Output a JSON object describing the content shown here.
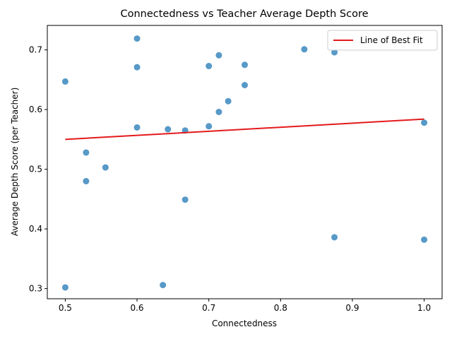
{
  "chart_data": {
    "type": "scatter",
    "title": "Connectedness vs Teacher Average Depth Score",
    "xlabel": "Connectedness",
    "ylabel": "Average Depth Score (per Teacher)",
    "xlim": [
      0.475,
      1.025
    ],
    "ylim": [
      0.283,
      0.741
    ],
    "xticks": [
      0.5,
      0.6,
      0.7,
      0.8,
      0.9,
      1.0
    ],
    "xtick_labels": [
      "0.5",
      "0.6",
      "0.7",
      "0.8",
      "0.9",
      "1.0"
    ],
    "yticks": [
      0.3,
      0.4,
      0.5,
      0.6,
      0.7
    ],
    "ytick_labels": [
      "0.3",
      "0.4",
      "0.5",
      "0.6",
      "0.7"
    ],
    "grid": false,
    "legend_position": "top-right",
    "point_color": "#1f77b4",
    "fit_color": "#e41a1c",
    "series": [
      {
        "points": [
          [
            0.5,
            0.647
          ],
          [
            0.5,
            0.302
          ],
          [
            0.529,
            0.528
          ],
          [
            0.529,
            0.48
          ],
          [
            0.556,
            0.503
          ],
          [
            0.6,
            0.719
          ],
          [
            0.6,
            0.671
          ],
          [
            0.6,
            0.57
          ],
          [
            0.636,
            0.306
          ],
          [
            0.643,
            0.567
          ],
          [
            0.667,
            0.565
          ],
          [
            0.667,
            0.449
          ],
          [
            0.7,
            0.673
          ],
          [
            0.7,
            0.572
          ],
          [
            0.714,
            0.691
          ],
          [
            0.714,
            0.596
          ],
          [
            0.727,
            0.614
          ],
          [
            0.75,
            0.675
          ],
          [
            0.75,
            0.641
          ],
          [
            0.833,
            0.701
          ],
          [
            0.875,
            0.696
          ],
          [
            0.875,
            0.386
          ],
          [
            1.0,
            0.578
          ],
          [
            1.0,
            0.382
          ]
        ]
      },
      {
        "name": "Line of Best Fit",
        "fit_line": [
          [
            0.5,
            0.55
          ],
          [
            1.0,
            0.584
          ]
        ]
      }
    ]
  }
}
